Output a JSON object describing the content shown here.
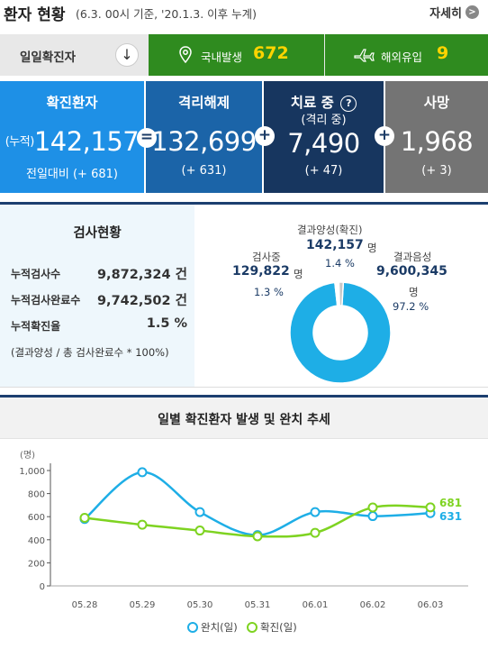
{
  "header": {
    "title": "환자 현황",
    "subtitle": "(6.3. 00시 기준, '20.1.3. 이후 누계)",
    "detail_link": "자세히",
    "detail_arrow": ">"
  },
  "daily": {
    "label": "일일확진자",
    "toggle": "↓",
    "domestic_label": "국내발생",
    "domestic_value": "672",
    "overseas_label": "해외유입",
    "overseas_value": "9",
    "icons": [
      "pin-icon",
      "airplane-icon"
    ]
  },
  "stats": {
    "confirmed": {
      "title": "확진환자",
      "prefix": "(누적)",
      "value": "142,157",
      "delta": "전일대비 (+ 681)"
    },
    "released": {
      "title": "격리해제",
      "value": "132,699",
      "delta": "(+ 631)"
    },
    "treatment": {
      "title": "치료 중",
      "subtitle": "(격리 중)",
      "value": "7,490",
      "delta": "(+ 47)",
      "help_icon": "?"
    },
    "deaths": {
      "title": "사망",
      "value": "1,968",
      "delta": "(+ 3)"
    },
    "operators": [
      "=",
      "+",
      "+"
    ]
  },
  "tests": {
    "title": "검사현황",
    "rows": [
      {
        "label": "누적검사수",
        "value": "9,872,324 건"
      },
      {
        "label": "누적검사완료수",
        "value": "9,742,502 건"
      },
      {
        "label": "누적확진율",
        "value": "1.5 %"
      }
    ],
    "note": "(결과양성 / 총 검사완료수 * 100%)",
    "donut": {
      "positive": {
        "label": "결과양성(확진)",
        "value": "142,157",
        "unit": "명",
        "pct": "1.4 %"
      },
      "testing": {
        "label": "검사중",
        "value": "129,822",
        "unit": "명",
        "pct": "1.3 %"
      },
      "negative": {
        "label": "결과음성",
        "value": "9,600,345",
        "unit": "명",
        "pct": "97.2 %"
      },
      "colors": {
        "negative": "#1eaee6",
        "positive": "#c8c8c8",
        "testing": "#ffffff"
      }
    }
  },
  "chart_data": {
    "type": "line",
    "title": "일별 확진환자 발생 및 완치 추세",
    "ylabel": "(명)",
    "x": [
      "05.28",
      "05.29",
      "05.30",
      "05.31",
      "06.01",
      "06.02",
      "06.03"
    ],
    "yticks": [
      "0",
      "200",
      "400",
      "600",
      "800",
      "1,000"
    ],
    "ylim": [
      0,
      1000
    ],
    "series": [
      {
        "name": "완치(일)",
        "color": "#1eaee6",
        "values": [
          580,
          985,
          640,
          440,
          640,
          605,
          631
        ]
      },
      {
        "name": "확진(일)",
        "color": "#7ed321",
        "values": [
          590,
          530,
          480,
          430,
          460,
          680,
          681
        ]
      }
    ],
    "end_labels": [
      "631",
      "681"
    ],
    "legend": "bottom-center"
  }
}
